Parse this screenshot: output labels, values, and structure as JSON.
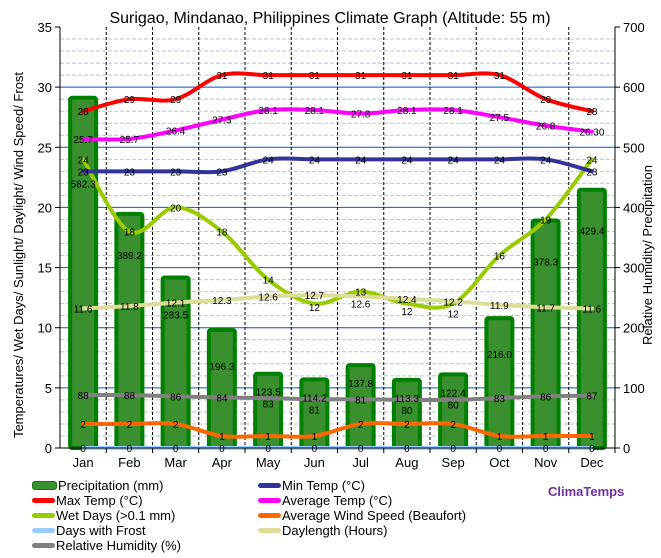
{
  "chart_data": {
    "type": "bar+line",
    "title": "Surigao, Mindanao, Philippines Climate Graph (Altitude: 55 m)",
    "ylabel_left": "Temperatures/ Wet Days/ Sunlight/ Daylight/ Wind Speed/ Frost",
    "ylabel_right": "Relative Humidity/ Precipitation",
    "ylim_left": [
      0,
      35
    ],
    "ylim_right": [
      0,
      700
    ],
    "yticks_left": [
      "0",
      "5",
      "10",
      "15",
      "20",
      "25",
      "30",
      "35"
    ],
    "yticks_right": [
      "0",
      "100",
      "200",
      "300",
      "400",
      "500",
      "600",
      "700"
    ],
    "grid": true,
    "legend_position": "bottom",
    "categories": [
      "Jan",
      "Feb",
      "Mar",
      "Apr",
      "May",
      "Jun",
      "Jul",
      "Aug",
      "Sep",
      "Oct",
      "Nov",
      "Dec"
    ],
    "series": [
      {
        "name": "Precipitation (mm)",
        "kind": "bar",
        "axis": "right",
        "color": "#3a8f2e",
        "labels": [
          "582.3",
          "389.2",
          "283.5",
          "196.3",
          "123.5",
          "114.2",
          "137.8",
          "113.3",
          "122.4",
          "216.0",
          "378.3",
          "429.4"
        ],
        "values": [
          582.3,
          389.2,
          283.5,
          196.3,
          123.5,
          114.2,
          137.8,
          113.3,
          122.4,
          216.0,
          378.3,
          429.4
        ]
      },
      {
        "name": "Max Temp (°C)",
        "kind": "line",
        "axis": "left",
        "color": "#ff0000",
        "labels": [
          "28",
          "29",
          "29",
          "31",
          "31",
          "31",
          "31",
          "31",
          "31",
          "31",
          "29",
          "28"
        ],
        "values": [
          28,
          29,
          29,
          31,
          31,
          31,
          31,
          31,
          31,
          31,
          29,
          28
        ]
      },
      {
        "name": "Wet Days (>0.1 mm)",
        "kind": "line",
        "axis": "left",
        "color": "#99cc00",
        "labels": [
          "24",
          "18",
          "20",
          "18",
          "14",
          "12",
          "13",
          "12",
          "12",
          "16",
          "19",
          "24"
        ],
        "values": [
          24,
          18,
          20,
          18,
          14,
          12,
          13,
          12,
          12,
          16,
          19,
          24
        ]
      },
      {
        "name": "Days with Frost",
        "kind": "line",
        "axis": "left",
        "color": "#99ccff",
        "labels": [
          "0",
          "0",
          "0",
          "0",
          "0",
          "0",
          "0",
          "0",
          "0",
          "0",
          "0",
          "0"
        ],
        "values": [
          0,
          0,
          0,
          0,
          0,
          0,
          0,
          0,
          0,
          0,
          0,
          0
        ]
      },
      {
        "name": "Relative Humidity (%)",
        "kind": "line",
        "axis": "right",
        "color": "#808080",
        "labels": [
          "88",
          "88",
          "86",
          "84",
          "83",
          "81",
          "81",
          "80",
          "80",
          "83",
          "86",
          "87"
        ],
        "values": [
          88,
          88,
          86,
          84,
          83,
          81,
          81,
          80,
          80,
          83,
          86,
          87
        ]
      },
      {
        "name": "Min Temp (°C)",
        "kind": "line",
        "axis": "left",
        "color": "#333399",
        "labels": [
          "23",
          "23",
          "23",
          "23",
          "24",
          "24",
          "24",
          "24",
          "24",
          "24",
          "24",
          "23"
        ],
        "values": [
          23,
          23,
          23,
          23,
          24,
          24,
          24,
          24,
          24,
          24,
          24,
          23
        ]
      },
      {
        "name": "Average Temp (°C)",
        "kind": "line",
        "axis": "left",
        "color": "#ff00ff",
        "labels": [
          "25.7",
          "25.7",
          "26.4",
          "27.3",
          "28.1",
          "28.1",
          "27.8",
          "28.1",
          "28.1",
          "27.5",
          "26.8",
          "26.30"
        ],
        "values": [
          25.7,
          25.7,
          26.4,
          27.3,
          28.1,
          28.1,
          27.8,
          28.1,
          28.1,
          27.5,
          26.8,
          26.3
        ]
      },
      {
        "name": "Average Wind Speed (Beaufort)",
        "kind": "line",
        "axis": "left",
        "color": "#ff6600",
        "labels": [
          "2",
          "2",
          "2",
          "1",
          "1",
          "1",
          "2",
          "2",
          "2",
          "1",
          "1",
          "1"
        ],
        "values": [
          2,
          2,
          2,
          1,
          1,
          1,
          2,
          2,
          2,
          1,
          1,
          1
        ]
      },
      {
        "name": "Daylength (Hours)",
        "kind": "line",
        "axis": "left",
        "color": "#dddd99",
        "labels": [
          "11.6",
          "11.8",
          "12.1",
          "12.3",
          "12.6",
          "12.7",
          "12.6",
          "12.4",
          "12.2",
          "11.9",
          "11.7",
          "11.6"
        ],
        "values": [
          11.6,
          11.8,
          12.1,
          12.3,
          12.6,
          12.7,
          12.6,
          12.4,
          12.2,
          11.9,
          11.7,
          11.6
        ]
      }
    ]
  },
  "brand": {
    "text": "ClimaTemps",
    "color": "#7030a0"
  }
}
